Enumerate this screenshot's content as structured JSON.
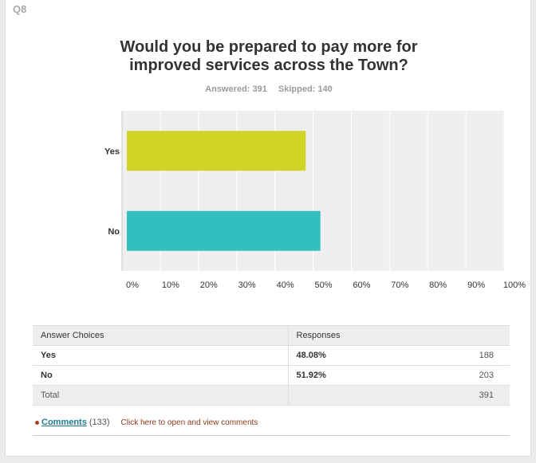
{
  "question_number": "Q8",
  "title_lines": [
    "Would you be prepared to pay more for",
    "improved services across the Town?"
  ],
  "answered_label": "Answered: 391",
  "skipped_label": "Skipped: 140",
  "chart_data": {
    "type": "bar",
    "orientation": "horizontal",
    "categories": [
      "Yes",
      "No"
    ],
    "values": [
      48.08,
      51.92
    ],
    "colors": [
      "#d0d426",
      "#33bfbe"
    ],
    "x_ticks": [
      "0%",
      "10%",
      "20%",
      "30%",
      "40%",
      "50%",
      "60%",
      "70%",
      "80%",
      "90%",
      "100%"
    ],
    "xlim": [
      0,
      100
    ],
    "grid": true,
    "plot_background": "#efefef"
  },
  "table": {
    "headers": [
      "Answer Choices",
      "Responses",
      ""
    ],
    "rows": [
      {
        "choice": "Yes",
        "percent": "48.08%",
        "count": "188"
      },
      {
        "choice": "No",
        "percent": "51.92%",
        "count": "203"
      }
    ],
    "total_label": "Total",
    "total_count": "391"
  },
  "comments": {
    "link_label": "Comments",
    "count": "(133)",
    "hint": "Click here to open and view comments"
  }
}
